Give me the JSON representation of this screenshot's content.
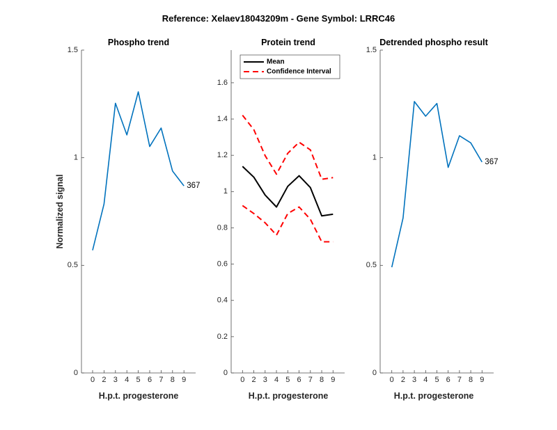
{
  "chart_data": {
    "title": "Reference:  Xelaev18043209m - Gene Symbol:  LRRC46",
    "panels": [
      {
        "id": "phospho",
        "type": "line",
        "title": "Phospho trend",
        "xlabel": "H.p.t. progesterone",
        "ylabel": "Normalized signal",
        "categories": [
          "0",
          "2",
          "3",
          "4",
          "5",
          "6",
          "7",
          "8",
          "9"
        ],
        "ylim": [
          0,
          1.5
        ],
        "yticks": [
          0,
          0.5,
          1,
          1.5
        ],
        "ytick_labels": [
          "0",
          "0.5",
          "1",
          "1.5"
        ],
        "grid": false,
        "series": [
          {
            "name": "367",
            "color": "#0072bd",
            "style": "solid",
            "values": [
              0.57,
              0.785,
              1.253,
              1.106,
              1.306,
              1.052,
              1.138,
              0.938,
              0.869
            ]
          }
        ],
        "end_label": "367"
      },
      {
        "id": "protein",
        "type": "line",
        "title": "Protein trend",
        "xlabel": "H.p.t. progesterone",
        "ylabel": "",
        "categories": [
          "0",
          "2",
          "3",
          "4",
          "5",
          "6",
          "7",
          "8",
          "9"
        ],
        "ylim": [
          0,
          1.78
        ],
        "yticks": [
          0,
          0.2,
          0.4,
          0.6,
          0.8,
          1,
          1.2,
          1.4,
          1.6
        ],
        "ytick_labels": [
          "0",
          "0.2",
          "0.4",
          "0.6",
          "0.8",
          "1",
          "1.2",
          "1.4",
          "1.6"
        ],
        "grid": false,
        "legend": {
          "placement": "top-left",
          "entries": [
            {
              "label": "Mean",
              "color": "#000000",
              "style": "solid"
            },
            {
              "label": "Confidence Interval",
              "color": "#ff0000",
              "style": "dashed"
            }
          ]
        },
        "series": [
          {
            "name": "Mean",
            "color": "#000000",
            "style": "solid",
            "values": [
              1.139,
              1.079,
              0.981,
              0.915,
              1.029,
              1.087,
              1.022,
              0.866,
              0.875
            ]
          },
          {
            "name": "Confidence Interval (upper)",
            "color": "#ff0000",
            "style": "dashed",
            "values": [
              1.421,
              1.341,
              1.198,
              1.096,
              1.211,
              1.272,
              1.23,
              1.068,
              1.077
            ]
          },
          {
            "name": "Confidence Interval (lower)",
            "color": "#ff0000",
            "style": "dashed",
            "values": [
              0.923,
              0.879,
              0.828,
              0.76,
              0.879,
              0.915,
              0.847,
              0.723,
              0.723
            ]
          }
        ]
      },
      {
        "id": "detrended",
        "type": "line",
        "title": "Detrended phospho result",
        "xlabel": "H.p.t. progesterone",
        "ylabel": "",
        "categories": [
          "0",
          "2",
          "3",
          "4",
          "5",
          "6",
          "7",
          "8",
          "9"
        ],
        "ylim": [
          0,
          1.5
        ],
        "yticks": [
          0,
          0.5,
          1,
          1.5
        ],
        "ytick_labels": [
          "0",
          "0.5",
          "1",
          "1.5"
        ],
        "grid": false,
        "series": [
          {
            "name": "367",
            "color": "#0072bd",
            "style": "solid",
            "values": [
              0.491,
              0.72,
              1.261,
              1.193,
              1.252,
              0.955,
              1.102,
              1.069,
              0.98
            ]
          }
        ],
        "end_label": "367"
      }
    ]
  }
}
